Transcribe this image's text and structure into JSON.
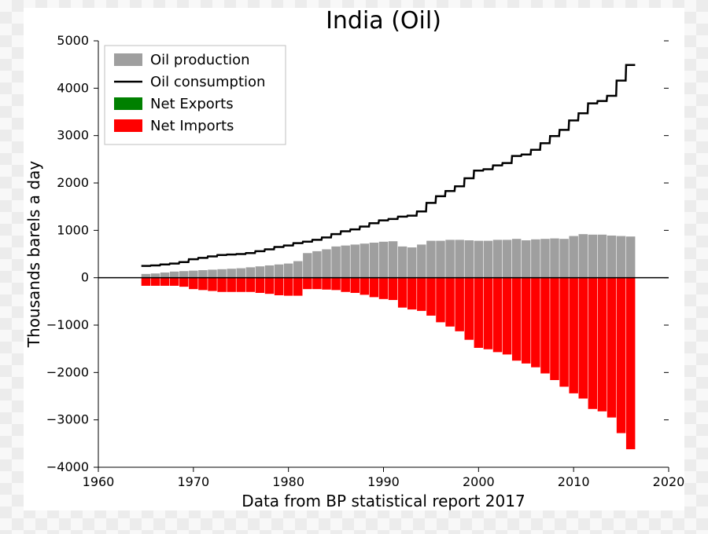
{
  "title": "India (Oil)",
  "xlabel": "Data from BP statistical report 2017",
  "ylabel": "Thousands barels a day",
  "font": {
    "title_size": 30,
    "axis_title_size": 20,
    "tick_size": 16,
    "legend_size": 18
  },
  "colors": {
    "background": "#ffffff",
    "axis": "#000000",
    "production": "#9f9f9f",
    "consumption": "#000000",
    "net_exports": "#008000",
    "net_imports": "#ff0000",
    "legend_border": "#bfbfbf"
  },
  "chart": {
    "type": "bar+step",
    "xlim": [
      1960,
      2020
    ],
    "ylim": [
      -4000,
      5000
    ],
    "xticks": [
      1960,
      1970,
      1980,
      1990,
      2000,
      2010,
      2020
    ],
    "yticks": [
      -4000,
      -3000,
      -2000,
      -1000,
      0,
      1000,
      2000,
      3000,
      4000,
      5000
    ],
    "ytick_step": 1000,
    "bar_width": 0.95,
    "line_width": 2.5,
    "years": [
      1965,
      1966,
      1967,
      1968,
      1969,
      1970,
      1971,
      1972,
      1973,
      1974,
      1975,
      1976,
      1977,
      1978,
      1979,
      1980,
      1981,
      1982,
      1983,
      1984,
      1985,
      1986,
      1987,
      1988,
      1989,
      1990,
      1991,
      1992,
      1993,
      1994,
      1995,
      1996,
      1997,
      1998,
      1999,
      2000,
      2001,
      2002,
      2003,
      2004,
      2005,
      2006,
      2007,
      2008,
      2009,
      2010,
      2011,
      2012,
      2013,
      2014,
      2015,
      2016
    ],
    "production": [
      80,
      90,
      110,
      130,
      140,
      150,
      160,
      170,
      180,
      190,
      200,
      220,
      240,
      260,
      280,
      300,
      350,
      520,
      560,
      600,
      660,
      680,
      700,
      720,
      740,
      760,
      770,
      660,
      640,
      700,
      780,
      780,
      800,
      800,
      790,
      780,
      780,
      800,
      800,
      820,
      790,
      810,
      820,
      830,
      820,
      880,
      920,
      910,
      910,
      890,
      880,
      870
    ],
    "consumption": [
      250,
      260,
      280,
      300,
      330,
      390,
      420,
      450,
      480,
      490,
      500,
      520,
      560,
      600,
      650,
      680,
      730,
      760,
      800,
      850,
      920,
      980,
      1020,
      1080,
      1150,
      1210,
      1240,
      1290,
      1310,
      1400,
      1580,
      1720,
      1830,
      1930,
      2100,
      2260,
      2290,
      2370,
      2420,
      2570,
      2600,
      2700,
      2840,
      2990,
      3120,
      3320,
      3470,
      3680,
      3730,
      3840,
      4160,
      4490
    ],
    "net_imports": [
      -170,
      -170,
      -170,
      -170,
      -190,
      -240,
      -260,
      -280,
      -300,
      -300,
      -300,
      -300,
      -320,
      -340,
      -370,
      -380,
      -380,
      -240,
      -240,
      -250,
      -260,
      -300,
      -320,
      -360,
      -410,
      -450,
      -470,
      -630,
      -670,
      -700,
      -800,
      -940,
      -1030,
      -1130,
      -1310,
      -1480,
      -1510,
      -1570,
      -1620,
      -1750,
      -1810,
      -1890,
      -2020,
      -2160,
      -2300,
      -2440,
      -2550,
      -2770,
      -2820,
      -2950,
      -3280,
      -3620
    ]
  },
  "legend": {
    "position": "upper left",
    "items": [
      {
        "label": "Oil production",
        "type": "patch",
        "color": "#9f9f9f"
      },
      {
        "label": "Oil consumption",
        "type": "line",
        "color": "#000000"
      },
      {
        "label": "Net Exports",
        "type": "patch",
        "color": "#008000"
      },
      {
        "label": "Net Imports",
        "type": "patch",
        "color": "#ff0000"
      }
    ]
  }
}
